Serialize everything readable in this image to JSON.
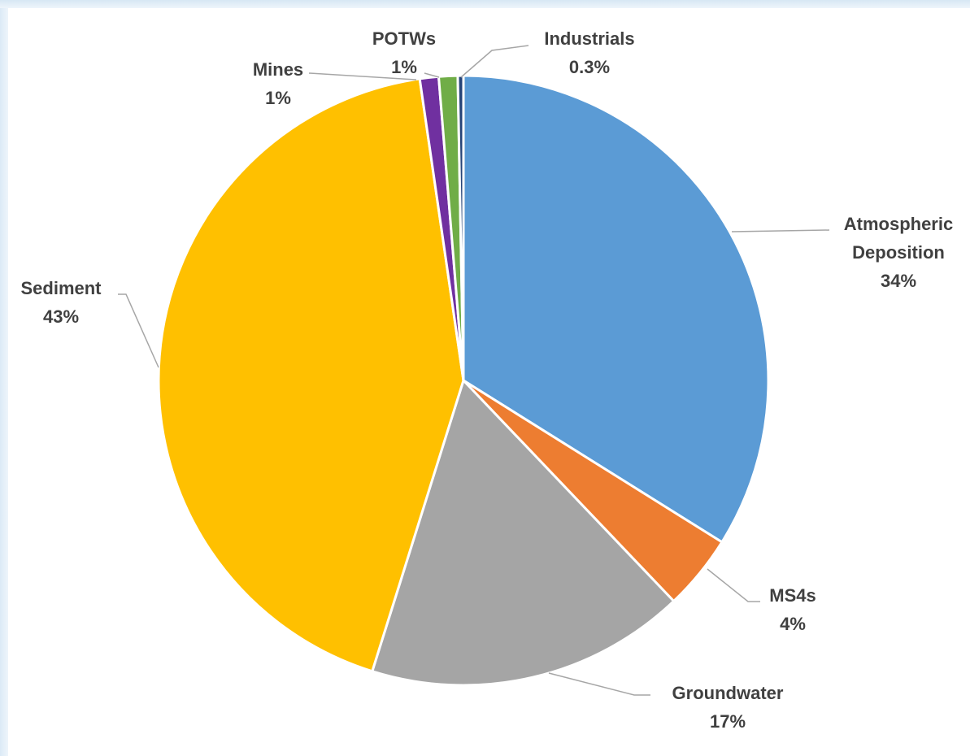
{
  "chart_data": {
    "type": "pie",
    "categories": [
      "Atmospheric Deposition",
      "MS4s",
      "Groundwater",
      "Sediment",
      "Mines",
      "POTWs",
      "Industrials"
    ],
    "values": [
      34,
      4,
      17,
      43,
      1,
      1,
      0.3
    ],
    "value_labels": [
      "34%",
      "4%",
      "17%",
      "43%",
      "1%",
      "1%",
      "0.3%"
    ],
    "colors": [
      "#5b9bd5",
      "#ed7d31",
      "#a5a5a5",
      "#ffc000",
      "#7030a0",
      "#70ad47",
      "#264478"
    ]
  }
}
